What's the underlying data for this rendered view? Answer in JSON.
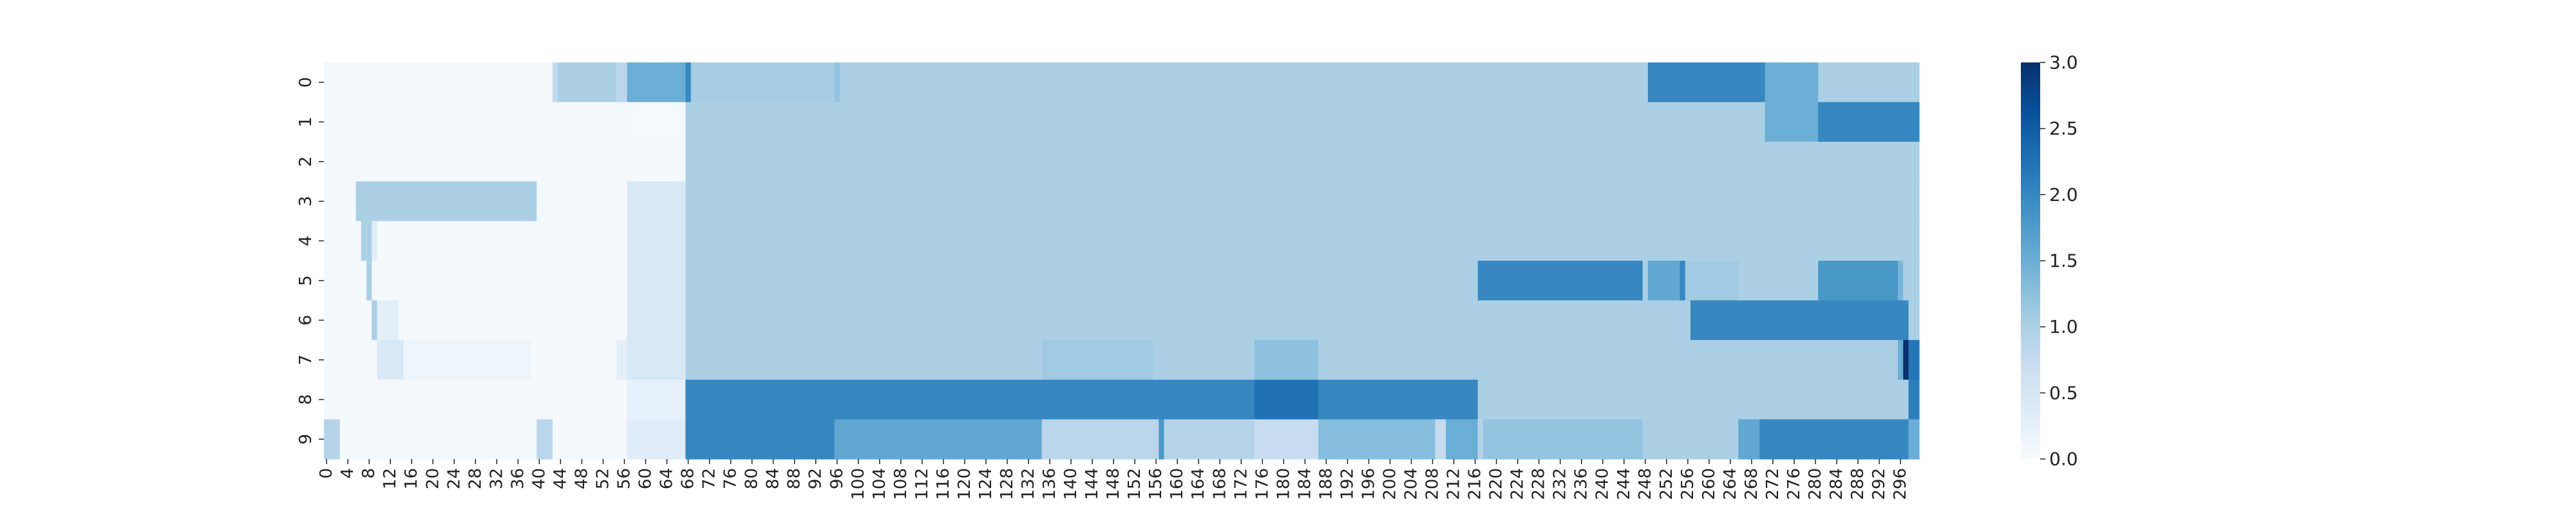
{
  "chart_data": {
    "type": "heatmap",
    "title": "",
    "xlabel": "",
    "ylabel": "",
    "n_cols": 300,
    "x_tick_step": 4,
    "y_labels": [
      "0",
      "1",
      "2",
      "3",
      "4",
      "5",
      "6",
      "7",
      "8",
      "9"
    ],
    "colorbar": {
      "min": 0.0,
      "max": 3.0,
      "ticks": [
        "0.0",
        "0.5",
        "1.0",
        "1.5",
        "2.0",
        "2.5",
        "3.0"
      ]
    },
    "colormap": [
      "#f7fbff",
      "#deebf7",
      "#c6dbef",
      "#9ecae1",
      "#6baed6",
      "#4292c6",
      "#2171b5",
      "#08519c",
      "#08306b"
    ],
    "rows": [
      {
        "label": "0",
        "segments": [
          [
            0,
            43,
            0.05
          ],
          [
            43,
            44,
            0.8
          ],
          [
            44,
            55,
            1.0
          ],
          [
            55,
            57,
            0.85
          ],
          [
            57,
            68,
            1.5
          ],
          [
            68,
            69,
            2.0
          ],
          [
            69,
            96,
            1.05
          ],
          [
            96,
            97,
            1.2
          ],
          [
            97,
            249,
            1.0
          ],
          [
            249,
            271,
            2.0
          ],
          [
            271,
            281,
            1.5
          ],
          [
            281,
            300,
            1.0
          ]
        ]
      },
      {
        "label": "1",
        "segments": [
          [
            0,
            57,
            0.05
          ],
          [
            57,
            68,
            0.03
          ],
          [
            68,
            271,
            1.0
          ],
          [
            271,
            281,
            1.5
          ],
          [
            281,
            300,
            2.0
          ]
        ]
      },
      {
        "label": "2",
        "segments": [
          [
            0,
            68,
            0.05
          ],
          [
            68,
            300,
            1.0
          ]
        ]
      },
      {
        "label": "3",
        "segments": [
          [
            0,
            6,
            0.05
          ],
          [
            6,
            40,
            1.0
          ],
          [
            40,
            57,
            0.05
          ],
          [
            57,
            68,
            0.45
          ],
          [
            68,
            300,
            1.0
          ]
        ]
      },
      {
        "label": "4",
        "segments": [
          [
            0,
            7,
            0.05
          ],
          [
            7,
            9,
            1.0
          ],
          [
            9,
            10,
            0.3
          ],
          [
            10,
            57,
            0.05
          ],
          [
            57,
            68,
            0.45
          ],
          [
            68,
            300,
            1.0
          ]
        ]
      },
      {
        "label": "5",
        "segments": [
          [
            0,
            8,
            0.05
          ],
          [
            8,
            9,
            1.0
          ],
          [
            9,
            57,
            0.05
          ],
          [
            57,
            68,
            0.45
          ],
          [
            68,
            217,
            1.0
          ],
          [
            217,
            248,
            2.0
          ],
          [
            248,
            249,
            1.0
          ],
          [
            249,
            255,
            1.6
          ],
          [
            255,
            256,
            2.0
          ],
          [
            256,
            266,
            1.1
          ],
          [
            266,
            281,
            1.0
          ],
          [
            281,
            296,
            1.8
          ],
          [
            296,
            297,
            1.4
          ],
          [
            297,
            300,
            1.0
          ]
        ]
      },
      {
        "label": "6",
        "segments": [
          [
            0,
            9,
            0.05
          ],
          [
            9,
            10,
            1.0
          ],
          [
            10,
            14,
            0.3
          ],
          [
            14,
            57,
            0.05
          ],
          [
            57,
            68,
            0.45
          ],
          [
            68,
            257,
            1.0
          ],
          [
            257,
            298,
            2.0
          ],
          [
            298,
            300,
            1.0
          ]
        ]
      },
      {
        "label": "7",
        "segments": [
          [
            0,
            10,
            0.05
          ],
          [
            10,
            15,
            0.45
          ],
          [
            15,
            39,
            0.15
          ],
          [
            39,
            55,
            0.05
          ],
          [
            55,
            57,
            0.3
          ],
          [
            57,
            68,
            0.45
          ],
          [
            68,
            135,
            1.0
          ],
          [
            135,
            156,
            1.1
          ],
          [
            156,
            175,
            1.0
          ],
          [
            175,
            187,
            1.25
          ],
          [
            187,
            296,
            1.0
          ],
          [
            296,
            297,
            1.5
          ],
          [
            297,
            298,
            3.0
          ],
          [
            298,
            300,
            2.2
          ]
        ]
      },
      {
        "label": "8",
        "segments": [
          [
            0,
            57,
            0.05
          ],
          [
            57,
            68,
            0.25
          ],
          [
            68,
            175,
            2.0
          ],
          [
            175,
            187,
            2.25
          ],
          [
            187,
            217,
            2.0
          ],
          [
            217,
            298,
            1.0
          ],
          [
            298,
            300,
            2.1
          ]
        ]
      },
      {
        "label": "9",
        "segments": [
          [
            0,
            3,
            0.9
          ],
          [
            3,
            40,
            0.05
          ],
          [
            40,
            43,
            0.85
          ],
          [
            43,
            57,
            0.05
          ],
          [
            57,
            68,
            0.35
          ],
          [
            68,
            96,
            2.0
          ],
          [
            96,
            135,
            1.6
          ],
          [
            135,
            157,
            0.85
          ],
          [
            157,
            158,
            1.8
          ],
          [
            158,
            175,
            0.9
          ],
          [
            175,
            187,
            0.7
          ],
          [
            187,
            209,
            1.3
          ],
          [
            209,
            211,
            0.75
          ],
          [
            211,
            217,
            1.5
          ],
          [
            217,
            218,
            0.9
          ],
          [
            218,
            248,
            1.2
          ],
          [
            248,
            266,
            1.0
          ],
          [
            266,
            270,
            1.6
          ],
          [
            270,
            298,
            2.0
          ],
          [
            298,
            300,
            1.5
          ]
        ]
      }
    ]
  }
}
